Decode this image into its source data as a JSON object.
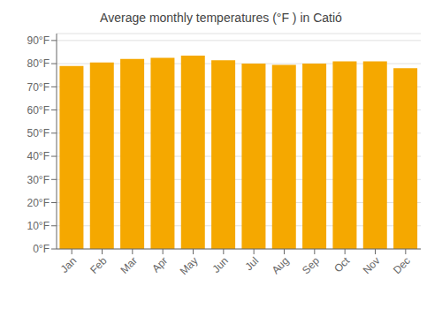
{
  "chart_data": {
    "type": "bar",
    "title": "Average monthly temperatures (°F ) in Catió",
    "categories": [
      "Jan",
      "Feb",
      "Mar",
      "Apr",
      "May",
      "Jun",
      "Jul",
      "Aug",
      "Sep",
      "Oct",
      "Nov",
      "Dec"
    ],
    "values": [
      79,
      80.5,
      82,
      82.5,
      83.5,
      81.5,
      80,
      79.5,
      80,
      81,
      81,
      78
    ],
    "color": "#F5A800",
    "ylim": [
      0,
      93
    ],
    "yticks": [
      {
        "value": 0,
        "label": "0°F"
      },
      {
        "value": 10,
        "label": "10°F"
      },
      {
        "value": 20,
        "label": "20°F"
      },
      {
        "value": 30,
        "label": "30°F"
      },
      {
        "value": 40,
        "label": "40°F"
      },
      {
        "value": 50,
        "label": "50°F"
      },
      {
        "value": 60,
        "label": "60°F"
      },
      {
        "value": 70,
        "label": "70°F"
      },
      {
        "value": 80,
        "label": "80°F"
      },
      {
        "value": 90,
        "label": "90°F"
      }
    ],
    "grid": true
  }
}
